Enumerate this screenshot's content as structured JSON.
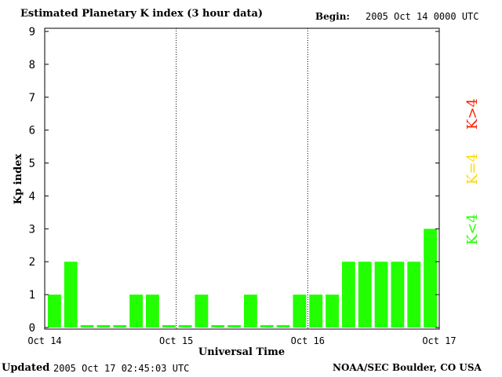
{
  "header": {
    "title": "Estimated Planetary K index (3 hour data)",
    "begin_label": "Begin:",
    "begin_value": "2005 Oct 14 0000 UTC"
  },
  "footer": {
    "updated_label": "Updated",
    "updated_value": "2005 Oct 17 02:45:03 UTC",
    "credit": "NOAA/SEC Boulder, CO USA"
  },
  "legend": [
    {
      "label": "K>4",
      "color": "#ff2000"
    },
    {
      "label": "K=4",
      "color": "#ffd800"
    },
    {
      "label": "K<4",
      "color": "#22ff00"
    }
  ],
  "chart_data": {
    "type": "bar",
    "title": "Estimated Planetary K index (3 hour data)",
    "xlabel": "Universal Time",
    "ylabel": "Kp index",
    "ylim": [
      0,
      9
    ],
    "yticks": [
      "0",
      "1",
      "2",
      "3",
      "4",
      "5",
      "6",
      "7",
      "8",
      "9"
    ],
    "xticks": [
      "Oct 14",
      "Oct 15",
      "Oct 16",
      "Oct 17"
    ],
    "values": [
      1,
      2,
      0,
      0,
      0,
      1,
      1,
      0,
      0,
      1,
      0,
      0,
      1,
      0,
      0,
      1,
      1,
      1,
      2,
      2,
      2,
      2,
      2,
      3
    ],
    "bar_color": "#22ff00",
    "day_separators": true
  }
}
